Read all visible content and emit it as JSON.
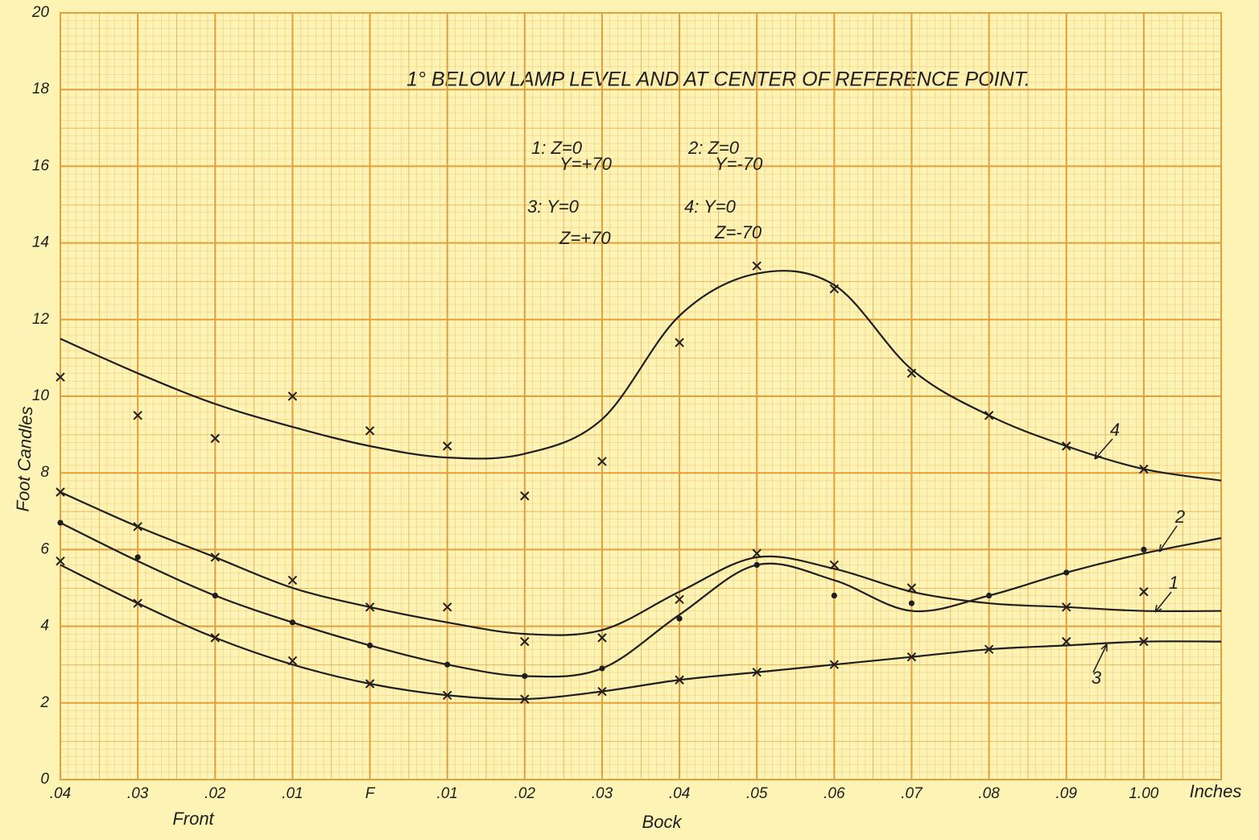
{
  "chart_data": {
    "type": "line",
    "title": "1° BELOW LAMP LEVEL AND AT CENTER OF REFERENCE POINT.",
    "y_label": "Foot Candles",
    "x_label": "Bock",
    "x_label_front": "Front",
    "x_unit": "Inches",
    "categories": [
      ".04",
      ".03",
      ".02",
      ".01",
      "F",
      ".01",
      ".02",
      ".03",
      ".04",
      ".05",
      ".06",
      ".07",
      ".08",
      ".09",
      "1.00",
      null
    ],
    "ylim": [
      0,
      20
    ],
    "yticks": [
      0,
      2,
      4,
      6,
      8,
      10,
      12,
      14,
      16,
      18,
      20
    ],
    "grid": true,
    "background": "#fcf3b4",
    "grid_color": "#e2a03c",
    "series": [
      {
        "name": "1",
        "legend": [
          "1: Z=0",
          "Y=+70"
        ],
        "color": "#1e1e1e",
        "marker": "x",
        "values": [
          7.5,
          6.6,
          5.8,
          5.0,
          4.5,
          4.1,
          3.8,
          3.9,
          4.9,
          5.8,
          5.5,
          4.9,
          4.6,
          4.5,
          4.4,
          4.4
        ],
        "points": [
          7.5,
          6.6,
          5.8,
          5.2,
          4.5,
          4.5,
          3.6,
          3.7,
          4.7,
          5.9,
          5.6,
          5.0,
          null,
          4.5,
          4.9,
          null
        ]
      },
      {
        "name": "2",
        "legend": [
          "2: Z=0",
          "Y=-70"
        ],
        "color": "#1e1e1e",
        "marker": "dot",
        "values": [
          6.7,
          5.7,
          4.8,
          4.1,
          3.5,
          3.0,
          2.7,
          2.9,
          4.3,
          5.6,
          5.2,
          4.4,
          4.8,
          5.4,
          5.9,
          6.3
        ],
        "points": [
          6.7,
          5.8,
          4.8,
          4.1,
          3.5,
          3.0,
          2.7,
          2.9,
          4.2,
          5.6,
          4.8,
          4.6,
          4.8,
          5.4,
          6.0,
          null
        ]
      },
      {
        "name": "3",
        "legend": [
          "3: Y=0",
          "Z=+70"
        ],
        "color": "#1e1e1e",
        "marker": "x",
        "values": [
          5.6,
          4.6,
          3.7,
          3.0,
          2.5,
          2.2,
          2.1,
          2.3,
          2.6,
          2.8,
          3.0,
          3.2,
          3.4,
          3.5,
          3.6,
          3.6
        ],
        "points": [
          5.7,
          4.6,
          3.7,
          3.1,
          2.5,
          2.2,
          2.1,
          2.3,
          2.6,
          2.8,
          3.0,
          3.2,
          3.4,
          3.6,
          3.6,
          null
        ]
      },
      {
        "name": "4",
        "legend": [
          "4: Y=0",
          "Z=-70"
        ],
        "color": "#1e1e1e",
        "marker": "x",
        "values": [
          11.5,
          10.6,
          9.8,
          9.2,
          8.7,
          8.4,
          8.5,
          9.4,
          12.1,
          13.2,
          12.9,
          10.7,
          9.5,
          8.7,
          8.1,
          7.8
        ],
        "points": [
          10.5,
          9.5,
          8.9,
          10.0,
          9.1,
          8.7,
          7.4,
          8.3,
          11.4,
          13.4,
          12.8,
          10.6,
          9.5,
          8.7,
          8.1,
          null
        ]
      }
    ]
  }
}
